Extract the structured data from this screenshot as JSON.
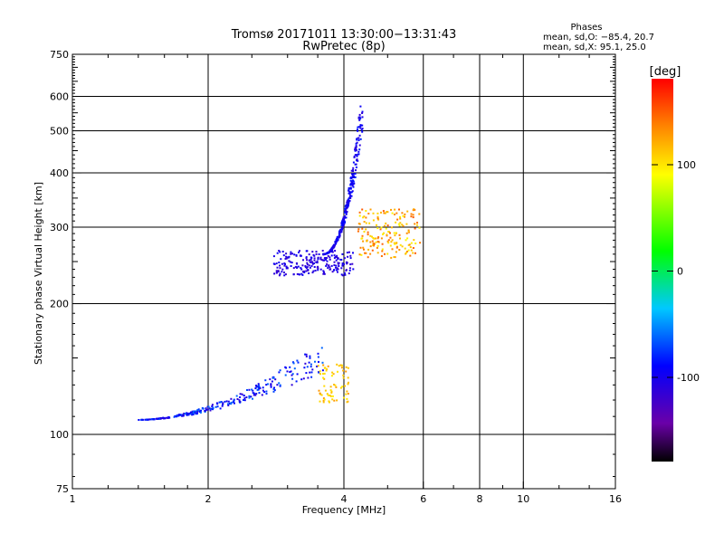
{
  "chart_data": {
    "type": "scatter",
    "title": "Tromsø 20171011 13:30:00−13:31:43",
    "subtitle": "RwPretec (8p)",
    "xlabel": "Frequency [MHz]",
    "ylabel": "Stationary phase Virtual Height [km]",
    "x_scale": "log",
    "y_scale": "log",
    "xlim": [
      1,
      16
    ],
    "ylim": [
      75,
      750
    ],
    "x_ticks": [
      1,
      2,
      4,
      6,
      8,
      10,
      16
    ],
    "y_ticks": [
      75,
      100,
      200,
      300,
      400,
      500,
      600,
      750
    ],
    "grid": true,
    "stats": {
      "heading": "Phases",
      "line1": "mean, sd,O: −85.4, 20.7",
      "line2": "mean, sd,X:  95.1, 25.0"
    },
    "colorbar": {
      "label": "[deg]",
      "range": [
        -180,
        180
      ],
      "ticks": [
        100,
        0,
        -100
      ],
      "colormap": "rainbow"
    },
    "clusters": [
      {
        "id": "F-trace-lower",
        "x_range": [
          2.8,
          4.2
        ],
        "y_range": [
          232,
          265
        ],
        "n": 220,
        "phase_range": [
          -120,
          -95
        ]
      },
      {
        "id": "F-trace-branch",
        "x_range": [
          3.6,
          4.4
        ],
        "y_range": [
          260,
          640
        ],
        "n": 320,
        "phase_range": [
          -115,
          -80
        ]
      },
      {
        "id": "F-x-trace",
        "x_range": [
          4.3,
          5.9
        ],
        "y_range": [
          255,
          330
        ],
        "n": 180,
        "phase_range": [
          90,
          150
        ]
      },
      {
        "id": "E-trace",
        "x_range": [
          1.4,
          3.6
        ],
        "y_range": [
          108,
          165
        ],
        "n": 280,
        "phase_range": [
          -115,
          -60
        ]
      },
      {
        "id": "E-x-trace",
        "x_range": [
          3.5,
          4.1
        ],
        "y_range": [
          118,
          145
        ],
        "n": 70,
        "phase_range": [
          95,
          130
        ]
      }
    ]
  }
}
